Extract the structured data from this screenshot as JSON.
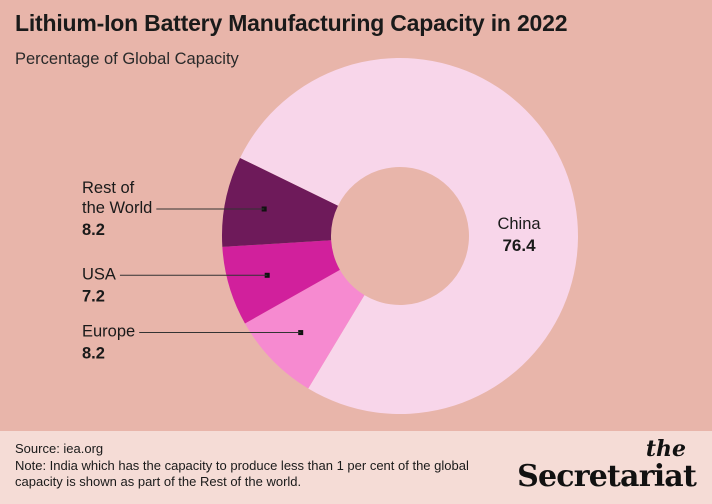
{
  "chart_data": {
    "type": "pie",
    "variant": "donut",
    "title": "Lithium-Ion Battery Manufacturing Capacity in 2022",
    "subtitle": "Percentage of Global Capacity",
    "slices": [
      {
        "label": "China",
        "value": 76.4,
        "display": "76.4",
        "color": "#f8d6ea"
      },
      {
        "label": "Europe",
        "value": 8.2,
        "display": "8.2",
        "color": "#f68ad0"
      },
      {
        "label": "USA",
        "value": 7.2,
        "display": "7.2",
        "color": "#d1209c"
      },
      {
        "label": "Rest of the World",
        "value": 8.2,
        "display": "8.2",
        "color": "#6e1a5a"
      }
    ]
  },
  "footer": {
    "source": "Source: iea.org",
    "note": "Note: India which has the capacity to produce  less than 1 per cent of the global capacity is shown as part of the Rest of the world.",
    "logo_the": "the",
    "logo_name": "Secretariat"
  },
  "colors": {
    "background": "#e8b5aa",
    "footer_background": "#f5dcd6",
    "text": "#1a1a1a"
  }
}
